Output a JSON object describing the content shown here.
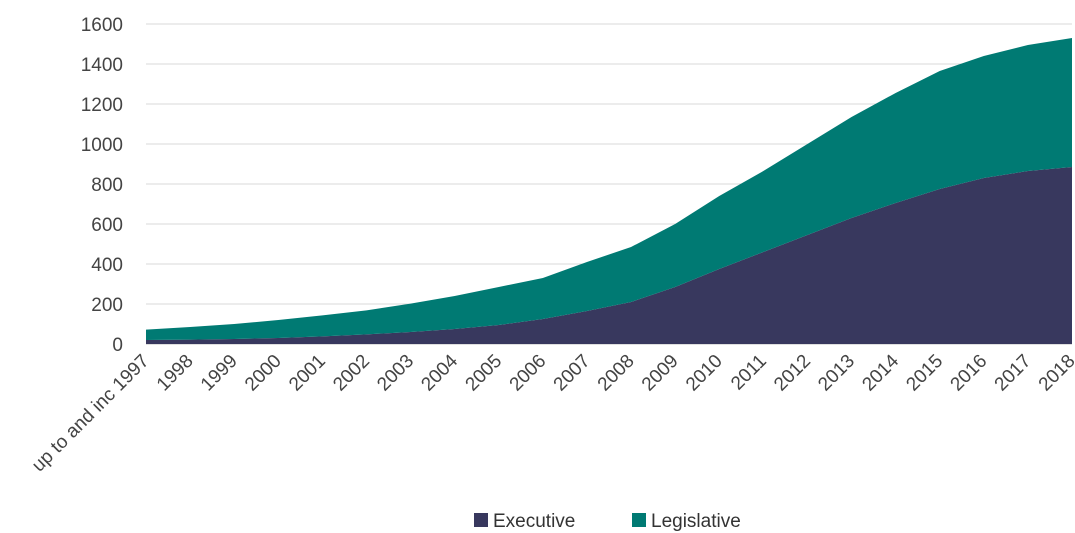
{
  "chart_data": {
    "type": "area",
    "stacked": true,
    "title": "",
    "xlabel": "",
    "ylabel": "",
    "categories": [
      "up to and inc 1997",
      "1998",
      "1999",
      "2000",
      "2001",
      "2002",
      "2003",
      "2004",
      "2005",
      "2006",
      "2007",
      "2008",
      "2009",
      "2010",
      "2011",
      "2012",
      "2013",
      "2014",
      "2015",
      "2016",
      "2017",
      "2018"
    ],
    "ylim": [
      0,
      1600
    ],
    "yticks": [
      0,
      200,
      400,
      600,
      800,
      1000,
      1200,
      1400,
      1600
    ],
    "grid": true,
    "legend_position": "bottom",
    "series": [
      {
        "name": "Executive",
        "color": "#38385e",
        "values": [
          20,
          22,
          25,
          30,
          38,
          48,
          60,
          75,
          95,
          125,
          165,
          210,
          285,
          375,
          460,
          545,
          630,
          705,
          775,
          830,
          865,
          885
        ]
      },
      {
        "name": "Legislative",
        "color": "#007a73",
        "values": [
          52,
          63,
          75,
          90,
          105,
          120,
          142,
          165,
          190,
          205,
          245,
          275,
          315,
          365,
          405,
          455,
          505,
          550,
          590,
          610,
          630,
          645
        ]
      }
    ]
  }
}
